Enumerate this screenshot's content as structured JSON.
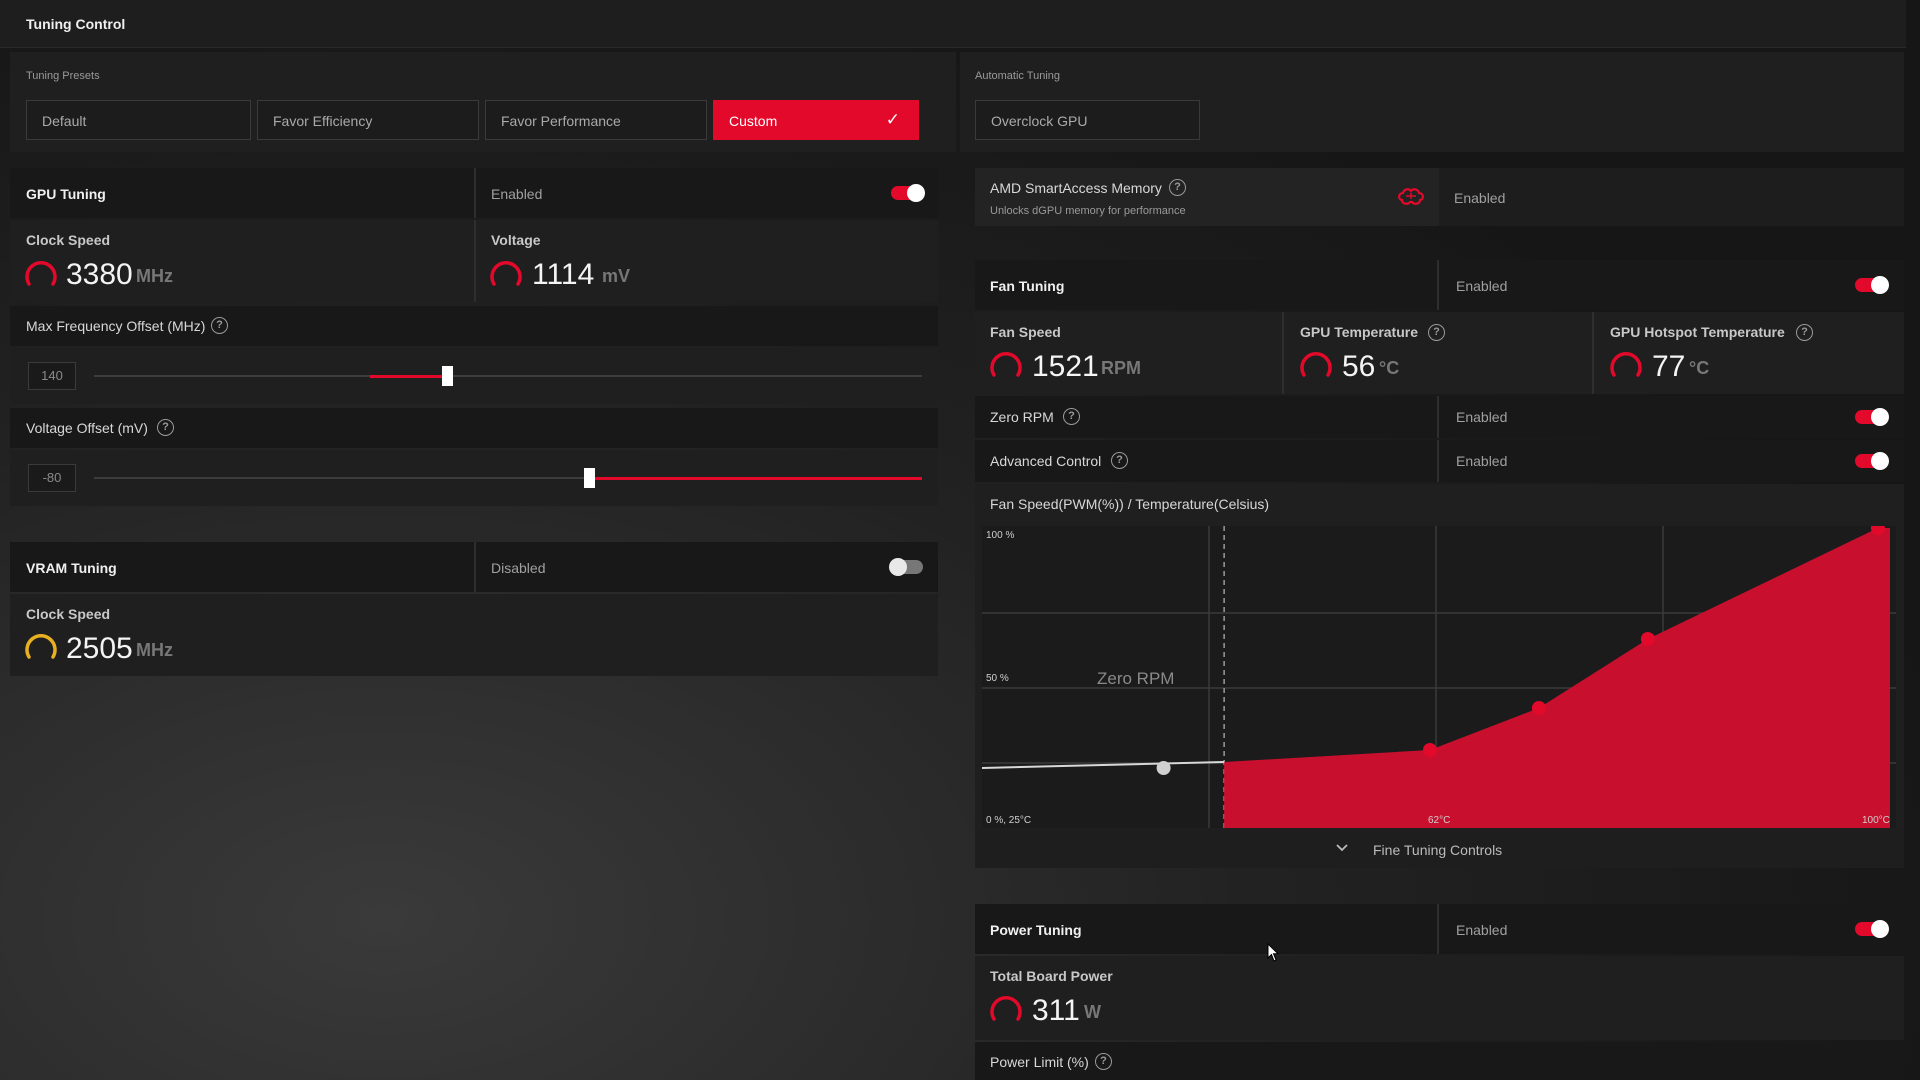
{
  "window": {
    "title": "Tuning Control"
  },
  "presets": {
    "section_label": "Tuning Presets",
    "items": [
      "Default",
      "Favor Efficiency",
      "Favor Performance",
      "Custom"
    ],
    "selected": "Custom"
  },
  "automatic": {
    "section_label": "Automatic Tuning",
    "overclock_label": "Overclock GPU"
  },
  "gpu_tuning": {
    "title": "GPU Tuning",
    "status": "Enabled",
    "enabled": true,
    "clock_label": "Clock Speed",
    "clock_value": "3380",
    "clock_unit": "MHz",
    "voltage_label": "Voltage",
    "voltage_value": "1114",
    "voltage_unit": "mV",
    "max_freq_label": "Max Frequency Offset (MHz)",
    "max_freq_value": "140",
    "max_freq_fraction": 0.43,
    "voltage_offset_label": "Voltage Offset (mV)",
    "voltage_offset_value": "-80",
    "voltage_offset_fraction": 0.6
  },
  "vram_tuning": {
    "title": "VRAM Tuning",
    "status": "Disabled",
    "enabled": false,
    "clock_label": "Clock Speed",
    "clock_value": "2505",
    "clock_unit": "MHz"
  },
  "smart_access": {
    "title": "AMD SmartAccess Memory",
    "subtitle": "Unlocks dGPU memory for performance",
    "status": "Enabled",
    "icon": "brain-icon"
  },
  "fan_tuning": {
    "title": "Fan Tuning",
    "status": "Enabled",
    "enabled": true,
    "fan_speed_label": "Fan Speed",
    "fan_speed_value": "1521",
    "fan_speed_unit": "RPM",
    "gpu_temp_label": "GPU Temperature",
    "gpu_temp_value": "56",
    "gpu_temp_unit": "°C",
    "hotspot_label": "GPU Hotspot Temperature",
    "hotspot_value": "77",
    "hotspot_unit": "°C",
    "zero_rpm_label": "Zero RPM",
    "zero_rpm_status": "Enabled",
    "advanced_label": "Advanced Control",
    "advanced_status": "Enabled",
    "curve_title": "Fan Speed(PWM(%)) / Temperature(Celsius)",
    "zero_rpm_region_label": "Zero RPM",
    "fine_tuning_label": "Fine Tuning Controls"
  },
  "chart_data": {
    "type": "area",
    "title": "Fan Speed(PWM(%)) / Temperature(Celsius)",
    "tick_labels": {
      "y_top": "100 %",
      "y_mid": "50 %",
      "origin": "0 %, 25°C",
      "x_mid": "62°C",
      "x_max": "100°C"
    },
    "xlim": [
      25,
      100
    ],
    "ylim": [
      0,
      100
    ],
    "zero_rpm_point": {
      "x": 40,
      "y": 20
    },
    "zero_rpm_boundary_x": 45,
    "series": [
      {
        "points": [
          {
            "x": 45,
            "y": 22
          },
          {
            "x": 62,
            "y": 26
          },
          {
            "x": 71,
            "y": 40
          },
          {
            "x": 80,
            "y": 63
          },
          {
            "x": 99,
            "y": 100
          }
        ]
      }
    ],
    "grid": true,
    "colors": {
      "fill": "#c8102e",
      "point": "#e2092b"
    }
  },
  "power_tuning": {
    "title": "Power Tuning",
    "status": "Enabled",
    "enabled": true,
    "board_power_label": "Total Board Power",
    "board_power_value": "311",
    "board_power_unit": "W",
    "power_limit_label": "Power Limit (%)"
  },
  "colors": {
    "accent": "#e2092b",
    "gauge_vram": "#e8b021",
    "panel": "#1f1f1f"
  }
}
